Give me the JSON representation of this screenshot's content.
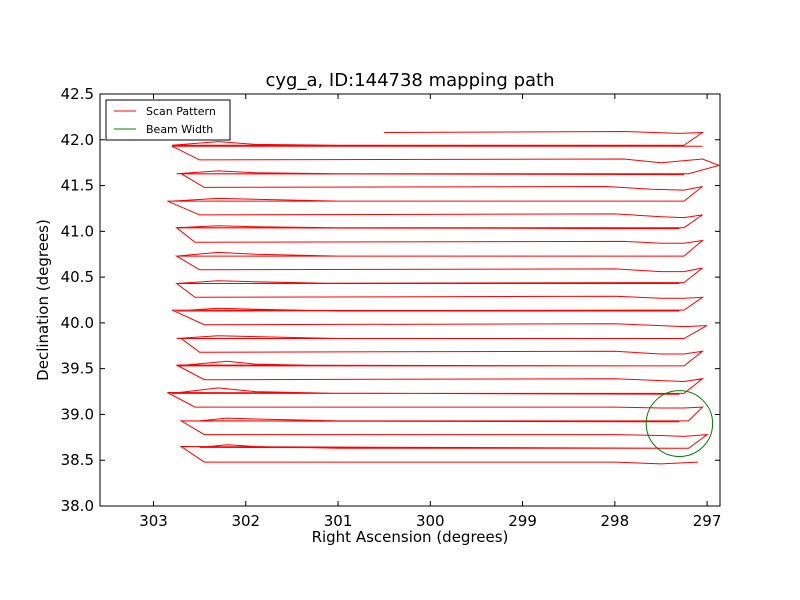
{
  "chart_data": {
    "type": "line",
    "title": "cyg_a, ID:144738 mapping path",
    "xlabel": "Right Ascension (degrees)",
    "ylabel": "Declination (degrees)",
    "xlim": [
      303.58,
      296.86
    ],
    "ylim": [
      38.0,
      42.5
    ],
    "x_ticks": [
      303,
      302,
      301,
      300,
      299,
      298,
      297
    ],
    "y_ticks": [
      38.0,
      38.5,
      39.0,
      39.5,
      40.0,
      40.5,
      41.0,
      41.5,
      42.0,
      42.5
    ],
    "x_tick_labels": [
      "303",
      "302",
      "301",
      "300",
      "299",
      "298",
      "297"
    ],
    "y_tick_labels": [
      "38.0",
      "38.5",
      "39.0",
      "39.5",
      "40.0",
      "40.5",
      "41.0",
      "41.5",
      "42.0",
      "42.5"
    ],
    "grid": false,
    "legend_position": "upper-left",
    "series": [
      {
        "name": "Scan Pattern",
        "color": "#ff0000",
        "points": [
          [
            300.5,
            42.08
          ],
          [
            297.9,
            42.09
          ],
          [
            297.3,
            42.07
          ],
          [
            297.05,
            42.08
          ],
          [
            297.25,
            41.94
          ],
          [
            302.8,
            41.94
          ],
          [
            302.3,
            41.98
          ],
          [
            301.9,
            41.95
          ],
          [
            301.0,
            41.94
          ],
          [
            298.2,
            41.93
          ],
          [
            297.05,
            41.93
          ],
          [
            302.8,
            41.93
          ],
          [
            302.5,
            41.78
          ],
          [
            297.9,
            41.79
          ],
          [
            297.5,
            41.75
          ],
          [
            297.05,
            41.79
          ],
          [
            296.87,
            41.72
          ],
          [
            297.2,
            41.63
          ],
          [
            302.75,
            41.63
          ],
          [
            302.3,
            41.66
          ],
          [
            301.9,
            41.64
          ],
          [
            301.0,
            41.63
          ],
          [
            298.0,
            41.63
          ],
          [
            297.25,
            41.62
          ],
          [
            302.7,
            41.63
          ],
          [
            302.45,
            41.48
          ],
          [
            298.1,
            41.49
          ],
          [
            297.6,
            41.46
          ],
          [
            297.25,
            41.45
          ],
          [
            297.05,
            41.49
          ],
          [
            297.25,
            41.33
          ],
          [
            302.8,
            41.33
          ],
          [
            302.3,
            41.36
          ],
          [
            301.0,
            41.33
          ],
          [
            298.0,
            41.33
          ],
          [
            297.5,
            41.33
          ],
          [
            302.85,
            41.33
          ],
          [
            302.5,
            41.18
          ],
          [
            298.0,
            41.19
          ],
          [
            297.5,
            41.16
          ],
          [
            297.25,
            41.15
          ],
          [
            297.05,
            41.18
          ],
          [
            297.25,
            41.04
          ],
          [
            302.75,
            41.04
          ],
          [
            302.3,
            41.06
          ],
          [
            301.9,
            41.05
          ],
          [
            301.0,
            41.04
          ],
          [
            298.0,
            41.03
          ],
          [
            297.3,
            41.03
          ],
          [
            302.75,
            41.04
          ],
          [
            302.55,
            40.88
          ],
          [
            297.9,
            40.89
          ],
          [
            297.5,
            40.87
          ],
          [
            297.25,
            40.87
          ],
          [
            297.05,
            40.9
          ],
          [
            297.25,
            40.73
          ],
          [
            302.75,
            40.73
          ],
          [
            302.3,
            40.77
          ],
          [
            301.9,
            40.75
          ],
          [
            301.0,
            40.73
          ],
          [
            298.0,
            40.73
          ],
          [
            297.3,
            40.73
          ],
          [
            302.75,
            40.73
          ],
          [
            302.5,
            40.58
          ],
          [
            298.0,
            40.59
          ],
          [
            297.5,
            40.56
          ],
          [
            297.25,
            40.56
          ],
          [
            297.05,
            40.6
          ],
          [
            297.25,
            40.44
          ],
          [
            302.75,
            40.43
          ],
          [
            302.3,
            40.46
          ],
          [
            301.9,
            40.45
          ],
          [
            301.0,
            40.43
          ],
          [
            298.0,
            40.43
          ],
          [
            297.3,
            40.43
          ],
          [
            302.75,
            40.43
          ],
          [
            302.55,
            40.28
          ],
          [
            298.0,
            40.29
          ],
          [
            297.5,
            40.27
          ],
          [
            297.25,
            40.27
          ],
          [
            297.05,
            40.28
          ],
          [
            297.25,
            40.14
          ],
          [
            302.75,
            40.13
          ],
          [
            302.3,
            40.16
          ],
          [
            301.9,
            40.15
          ],
          [
            301.0,
            40.13
          ],
          [
            298.0,
            40.13
          ],
          [
            297.3,
            40.13
          ],
          [
            302.8,
            40.14
          ],
          [
            302.45,
            39.98
          ],
          [
            298.0,
            39.99
          ],
          [
            297.5,
            39.97
          ],
          [
            297.25,
            39.96
          ],
          [
            297.0,
            39.97
          ],
          [
            297.25,
            39.83
          ],
          [
            302.75,
            39.83
          ],
          [
            302.3,
            39.86
          ],
          [
            301.9,
            39.85
          ],
          [
            301.0,
            39.83
          ],
          [
            298.0,
            39.83
          ],
          [
            297.3,
            39.83
          ],
          [
            302.7,
            39.83
          ],
          [
            302.5,
            39.68
          ],
          [
            298.0,
            39.69
          ],
          [
            297.5,
            39.66
          ],
          [
            297.25,
            39.66
          ],
          [
            297.05,
            39.69
          ],
          [
            297.25,
            39.53
          ],
          [
            302.75,
            39.53
          ],
          [
            302.2,
            39.58
          ],
          [
            301.9,
            39.55
          ],
          [
            301.0,
            39.53
          ],
          [
            298.0,
            39.53
          ],
          [
            297.3,
            39.53
          ],
          [
            302.75,
            39.54
          ],
          [
            302.45,
            39.38
          ],
          [
            298.0,
            39.39
          ],
          [
            297.5,
            39.37
          ],
          [
            297.25,
            39.36
          ],
          [
            297.05,
            39.39
          ],
          [
            297.25,
            39.23
          ],
          [
            302.8,
            39.23
          ],
          [
            302.3,
            39.29
          ],
          [
            301.9,
            39.25
          ],
          [
            301.0,
            39.23
          ],
          [
            298.0,
            39.23
          ],
          [
            297.3,
            39.22
          ],
          [
            302.85,
            39.24
          ],
          [
            302.55,
            39.08
          ],
          [
            298.0,
            39.08
          ],
          [
            297.5,
            39.07
          ],
          [
            297.25,
            39.07
          ],
          [
            297.05,
            39.08
          ],
          [
            297.2,
            38.93
          ],
          [
            302.5,
            38.93
          ],
          [
            302.2,
            38.96
          ],
          [
            301.9,
            38.95
          ],
          [
            301.0,
            38.93
          ],
          [
            298.0,
            38.93
          ],
          [
            297.3,
            38.92
          ],
          [
            302.7,
            38.93
          ],
          [
            302.45,
            38.78
          ],
          [
            298.0,
            38.78
          ],
          [
            297.5,
            38.77
          ],
          [
            297.25,
            38.76
          ],
          [
            297.0,
            38.78
          ],
          [
            297.2,
            38.63
          ],
          [
            302.5,
            38.64
          ],
          [
            302.2,
            38.67
          ],
          [
            301.9,
            38.65
          ],
          [
            301.0,
            38.63
          ],
          [
            298.0,
            38.63
          ],
          [
            297.3,
            38.63
          ],
          [
            302.7,
            38.65
          ],
          [
            302.45,
            38.48
          ],
          [
            298.0,
            38.48
          ],
          [
            297.5,
            38.46
          ],
          [
            297.1,
            38.48
          ]
        ]
      },
      {
        "name": "Beam Width",
        "color": "#008000",
        "circle": {
          "center": [
            297.3,
            38.9
          ],
          "radius_deg": 0.36
        }
      }
    ]
  }
}
